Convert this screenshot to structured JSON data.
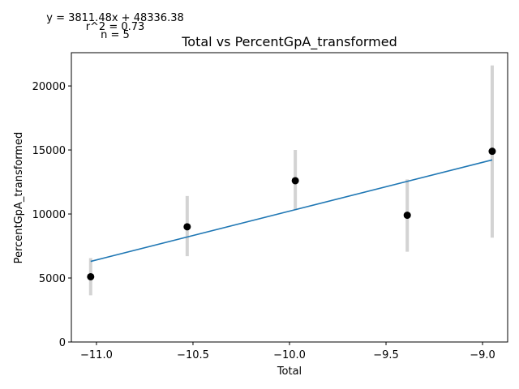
{
  "chart_data": {
    "type": "scatter",
    "title": "Total vs PercentGpA_transformed",
    "xlabel": "Total",
    "ylabel": "PercentGpA_transformed",
    "xlim": [
      -11.13,
      -8.87
    ],
    "ylim": [
      0,
      22600
    ],
    "xticks": [
      -11.0,
      -10.5,
      -10.0,
      -9.5,
      -9.0
    ],
    "xtick_labels": [
      "−11.0",
      "−10.5",
      "−10.0",
      "−9.5",
      "−9.0"
    ],
    "yticks": [
      0,
      5000,
      10000,
      15000,
      20000
    ],
    "ytick_labels": [
      "0",
      "5000",
      "10000",
      "15000",
      "20000"
    ],
    "grid": false,
    "points": [
      {
        "x": -11.03,
        "y": 5100,
        "err_low": 3650,
        "err_high": 6550
      },
      {
        "x": -10.53,
        "y": 9000,
        "err_low": 6700,
        "err_high": 11400
      },
      {
        "x": -9.97,
        "y": 12600,
        "err_low": 10300,
        "err_high": 15000
      },
      {
        "x": -9.39,
        "y": 9900,
        "err_low": 7050,
        "err_high": 12700
      },
      {
        "x": -8.95,
        "y": 14900,
        "err_low": 8150,
        "err_high": 21600
      }
    ],
    "fit_line": {
      "slope": 3811.48,
      "intercept": 48336.38,
      "x_start": -11.03,
      "x_end": -8.95
    },
    "annotations": {
      "equation": "y = 3811.48x + 48336.38",
      "r2": "r^2 = 0.73",
      "n": "n = 5"
    },
    "colors": {
      "points": "#000000",
      "error_bars": "#d3d3d3",
      "fit_line": "#1f77b4",
      "axes": "#000000"
    }
  }
}
